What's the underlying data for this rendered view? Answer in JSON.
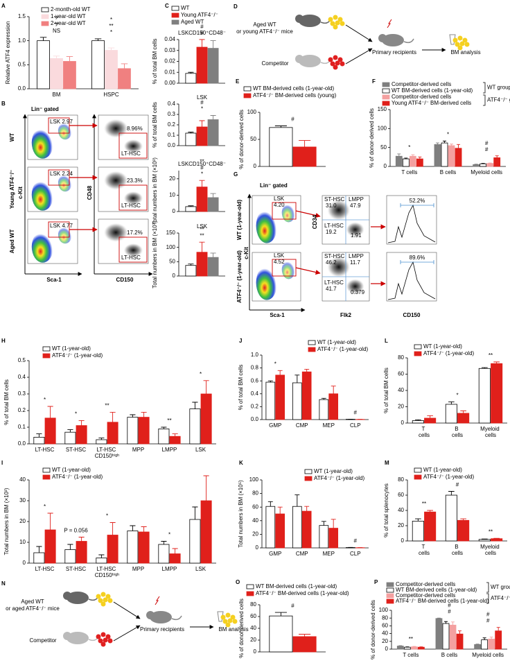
{
  "chart_data": [
    {
      "type": "bar",
      "panel": "A",
      "y_label": "Relative ATF4 expression",
      "categories": [
        "BM",
        "HSPC"
      ],
      "ylim": [
        0,
        1.5
      ],
      "yticks": [
        {
          "value": 0,
          "label": "0.0"
        },
        0.5,
        {
          "value": 1,
          "label": "1.0"
        },
        1.5
      ],
      "series": [
        {
          "name": "2-month-old WT",
          "color": "#ffffff",
          "values": [
            1.0,
            1.0
          ],
          "errors": [
            0.07,
            0.04
          ]
        },
        {
          "name": "1-year-old WT",
          "color": "#fadadd",
          "values": [
            0.63,
            0.8
          ],
          "errors": [
            0.05,
            0.05
          ]
        },
        {
          "name": "2-year-old WT",
          "color": "#f08080",
          "values": [
            0.57,
            0.42
          ],
          "errors": [
            0.1,
            0.1
          ]
        }
      ],
      "annotations": [
        {
          "text": "NS",
          "category": 0
        },
        {
          "text": "**",
          "category": 0
        },
        {
          "text": "**",
          "category": 0
        },
        {
          "text": "*",
          "category": 1
        },
        {
          "text": "**",
          "category": 1
        },
        {
          "text": "*",
          "category": 1
        }
      ]
    },
    {
      "type": "bar",
      "panel": "C",
      "title": "LSKCD150⁺CD48⁻",
      "y_label": "% of total BM cells",
      "categories": [
        null
      ],
      "ylim": [
        0,
        0.04
      ],
      "yticks": [
        {
          "value": 0,
          "label": "0.00"
        },
        0.01,
        0.02,
        0.03,
        0.04
      ],
      "series": [
        {
          "name": "WT",
          "color": "#ffffff",
          "values": [
            0.009
          ],
          "errors": [
            0.001
          ]
        },
        {
          "name": "Young ATF4⁻/⁻",
          "color": "#e0201b",
          "values": [
            0.033
          ],
          "errors": [
            0.007
          ]
        },
        {
          "name": "Aged WT",
          "color": "#7f7f7f",
          "values": [
            0.032
          ],
          "errors": [
            0.007
          ]
        }
      ],
      "annotations": [
        {
          "text": "#",
          "category": 0
        },
        {
          "text": "#",
          "category": 0
        }
      ]
    },
    {
      "type": "bar",
      "title": "LSK",
      "y_label": "% of total BM cells",
      "categories": [
        null
      ],
      "ylim": [
        0,
        0.4
      ],
      "yticks": [
        {
          "value": 0,
          "label": "0.0"
        },
        0.1,
        0.2,
        0.3,
        0.4
      ],
      "series": [
        {
          "color": "#ffffff",
          "values": [
            0.12
          ],
          "errors": [
            0.01
          ]
        },
        {
          "color": "#e0201b",
          "values": [
            0.18
          ],
          "errors": [
            0.06
          ]
        },
        {
          "color": "#7f7f7f",
          "values": [
            0.25
          ],
          "errors": [
            0.04
          ]
        }
      ],
      "annotations": [
        {
          "text": "*",
          "category": 0
        },
        {
          "text": "#",
          "category": 0
        }
      ]
    },
    {
      "type": "bar",
      "title": "LSKCD150⁺CD48⁻",
      "y_label": "Total numbers in BM (×10³)",
      "categories": [
        null
      ],
      "ylim": [
        0,
        25
      ],
      "yticks": [
        0,
        10,
        20
      ],
      "series": [
        {
          "color": "#ffffff",
          "values": [
            3
          ],
          "errors": [
            0.5
          ]
        },
        {
          "color": "#e0201b",
          "values": [
            15
          ],
          "errors": [
            4
          ]
        },
        {
          "color": "#7f7f7f",
          "values": [
            8.5
          ],
          "errors": [
            2.5
          ]
        }
      ],
      "annotations": [
        {
          "text": "*",
          "category": 0
        },
        {
          "text": "#",
          "category": 0
        },
        {
          "text": "**",
          "category": 0
        }
      ]
    },
    {
      "type": "bar",
      "title": "LSK",
      "y_label": "Total numbers in BM (×10⁴)",
      "categories": [
        null
      ],
      "ylim": [
        0,
        150
      ],
      "yticks": [
        0,
        50,
        100,
        150
      ],
      "series": [
        {
          "color": "#ffffff",
          "values": [
            37
          ],
          "errors": [
            5
          ]
        },
        {
          "color": "#e0201b",
          "values": [
            83
          ],
          "errors": [
            35
          ]
        },
        {
          "color": "#7f7f7f",
          "values": [
            65
          ],
          "errors": [
            15
          ]
        }
      ],
      "annotations": [
        {
          "text": "**",
          "category": 0
        },
        {
          "text": "**",
          "category": 0
        }
      ]
    },
    {
      "type": "bar",
      "panel": "E",
      "y_label": "% of donor-derived cells",
      "categories": [
        null
      ],
      "ylim": [
        0,
        100
      ],
      "yticks": [
        0,
        50,
        100
      ],
      "series": [
        {
          "name": "WT BM-derived cells (1-year-old)",
          "color": "#ffffff",
          "values": [
            72
          ],
          "errors": [
            3
          ]
        },
        {
          "name": "ATF4⁻/⁻ BM-derived cells (young)",
          "color": "#e0201b",
          "values": [
            36
          ],
          "errors": [
            12
          ]
        }
      ],
      "annotations": [
        {
          "text": "#",
          "category": 0
        }
      ]
    },
    {
      "type": "bar",
      "panel": "F",
      "y_label": "% of donor-derived cells",
      "categories": [
        "T cells",
        "B cells",
        "Myeloid cells"
      ],
      "ylim": [
        0,
        150
      ],
      "yticks": [
        0,
        50,
        100,
        150
      ],
      "series": [
        {
          "name": "Competitor-derived cells",
          "color": "#7f7f7f",
          "values": [
            27,
            58,
            5
          ],
          "errors": [
            6,
            4,
            1
          ]
        },
        {
          "name": "WT BM-derived cells (1-year-old)",
          "color": "#ffffff",
          "values": [
            20,
            62,
            7
          ],
          "errors": [
            2,
            5,
            1
          ]
        },
        {
          "name": "Competitor-derived cells",
          "color": "#f4a0a0",
          "values": [
            27,
            55,
            8
          ],
          "errors": [
            4,
            4,
            1
          ]
        },
        {
          "name": "Young ATF4⁻/⁻ BM-derived cells",
          "color": "#e0201b",
          "values": [
            20,
            48,
            23
          ],
          "errors": [
            5,
            10,
            5
          ]
        }
      ],
      "group_labels": [
        {
          "text": "WT group",
          "series": [
            0,
            1
          ]
        },
        {
          "text": "ATF4⁻/⁻ group",
          "series": [
            2,
            3
          ]
        }
      ],
      "annotations": [
        {
          "text": "*",
          "category": 0
        },
        {
          "text": "*",
          "category": 1
        },
        {
          "text": "#",
          "category": 2
        },
        {
          "text": "#",
          "category": 2
        }
      ]
    },
    {
      "type": "bar",
      "panel": "H",
      "y_label": "% of total BM cells",
      "categories": [
        "LT-HSC",
        "ST-HSC",
        "LT-HSC CD150ʰⁱᵍʰ",
        "MPP",
        "LMPP",
        "LSK"
      ],
      "ylim": [
        0,
        0.5
      ],
      "yticks": [
        {
          "value": 0,
          "label": "0.0"
        },
        0.1,
        0.2,
        0.3,
        0.4,
        0.5
      ],
      "series": [
        {
          "name": "WT (1-year-old)",
          "color": "#ffffff",
          "values": [
            0.04,
            0.07,
            0.025,
            0.16,
            0.09,
            0.21
          ],
          "errors": [
            0.02,
            0.015,
            0.01,
            0.015,
            0.01,
            0.04
          ]
        },
        {
          "name": "ATF4⁻/⁻ (1-year-old)",
          "color": "#e0201b",
          "values": [
            0.155,
            0.11,
            0.13,
            0.16,
            0.045,
            0.3
          ],
          "errors": [
            0.07,
            0.03,
            0.06,
            0.03,
            0.015,
            0.08
          ]
        }
      ],
      "annotations": [
        {
          "text": "*",
          "category": 0
        },
        {
          "text": "*",
          "category": 1
        },
        {
          "text": "**",
          "category": 2
        },
        {
          "text": "**",
          "category": 4
        },
        {
          "text": "*",
          "category": 5
        }
      ]
    },
    {
      "type": "bar",
      "panel": "I",
      "y_label": "Total numbers in BM (×10³)",
      "categories": [
        "LT-HSC",
        "ST-HSC",
        "LT-HSC CD150ʰⁱᵍʰ",
        "MPP",
        "LMPP",
        "LSK"
      ],
      "ylim": [
        0,
        40
      ],
      "yticks": [
        0,
        10,
        20,
        30,
        40
      ],
      "series": [
        {
          "name": "WT (1-year-old)",
          "color": "#ffffff",
          "values": [
            5,
            6.5,
            2.5,
            15.5,
            9,
            21
          ],
          "errors": [
            3,
            2.5,
            1.5,
            2.5,
            1.5,
            6
          ]
        },
        {
          "name": "ATF4⁻/⁻ (1-year-old)",
          "color": "#e0201b",
          "values": [
            16,
            10.5,
            13.5,
            15,
            4.5,
            30
          ],
          "errors": [
            8,
            2,
            6,
            2.5,
            2.5,
            12
          ]
        }
      ],
      "annotations": [
        {
          "text": "*",
          "category": 0
        },
        {
          "text": "P = 0.056",
          "category": 1
        },
        {
          "text": "*",
          "category": 2
        },
        {
          "text": "*",
          "category": 4
        }
      ]
    },
    {
      "type": "bar",
      "panel": "J",
      "y_label": "% of total BM cells",
      "categories": [
        "GMP",
        "CMP",
        "MEP",
        "CLP"
      ],
      "ylim": [
        0,
        1
      ],
      "yticks": [
        {
          "value": 0,
          "label": "0.0"
        },
        0.2,
        0.4,
        0.6,
        0.8,
        {
          "value": 1,
          "label": "1.0"
        }
      ],
      "series": [
        {
          "name": "WT (1-year-old)",
          "color": "#ffffff",
          "values": [
            0.58,
            0.57,
            0.31,
            0.005
          ],
          "errors": [
            0.02,
            0.12,
            0.02,
            0.001
          ]
        },
        {
          "name": "ATF4⁻/⁻ (1-year-old)",
          "color": "#e0201b",
          "values": [
            0.69,
            0.74,
            0.4,
            0.003
          ],
          "errors": [
            0.07,
            0.04,
            0.12,
            0.001
          ]
        }
      ],
      "annotations": [
        {
          "text": "*",
          "category": 0
        },
        {
          "text": "#",
          "category": 3
        }
      ]
    },
    {
      "type": "bar",
      "panel": "K",
      "y_label": "Total numbers in BM (×10⁵)",
      "categories": [
        "GMP",
        "CMP",
        "MEP",
        "CLP"
      ],
      "ylim": [
        0,
        100
      ],
      "yticks": [
        0,
        20,
        40,
        60,
        80,
        100
      ],
      "series": [
        {
          "name": "WT (1-year-old)",
          "color": "#ffffff",
          "values": [
            61,
            61,
            33,
            0.5
          ],
          "errors": [
            7,
            17,
            6,
            0.2
          ]
        },
        {
          "name": "ATF4⁻/⁻ (1-year-old)",
          "color": "#e0201b",
          "values": [
            50,
            54,
            29,
            0.3
          ],
          "errors": [
            10,
            7,
            13,
            0.1
          ]
        }
      ],
      "annotations": [
        {
          "text": "#",
          "category": 3
        }
      ]
    },
    {
      "type": "bar",
      "panel": "L",
      "y_label": "% of total BM cells",
      "categories": [
        "T cells",
        "B cells",
        "Myeloid cells"
      ],
      "ylim": [
        0,
        80
      ],
      "yticks": [
        0,
        20,
        40,
        60,
        80
      ],
      "series": [
        {
          "name": "WT (1-year-old)",
          "color": "#ffffff",
          "values": [
            3,
            23,
            67
          ],
          "errors": [
            1,
            3,
            1
          ]
        },
        {
          "name": "ATF4⁻/⁻ (1-year-old)",
          "color": "#e0201b",
          "values": [
            6,
            12,
            73
          ],
          "errors": [
            3,
            3,
            2
          ]
        }
      ],
      "annotations": [
        {
          "text": "*",
          "category": 1
        },
        {
          "text": "**",
          "category": 2
        }
      ]
    },
    {
      "type": "bar",
      "panel": "M",
      "y_label": "% of total splenocytes",
      "categories": [
        "T cells",
        "B cells",
        "Myeloid cells"
      ],
      "ylim": [
        0,
        80
      ],
      "yticks": [
        0,
        20,
        40,
        60,
        80
      ],
      "series": [
        {
          "name": "WT (1-year-old)",
          "color": "#ffffff",
          "values": [
            26,
            60,
            2
          ],
          "errors": [
            3,
            5,
            0.5
          ]
        },
        {
          "name": "ATF4⁻/⁻ (1-year-old)",
          "color": "#e0201b",
          "values": [
            38,
            27,
            3
          ],
          "errors": [
            2,
            2,
            0.5
          ]
        }
      ],
      "annotations": [
        {
          "text": "**",
          "category": 0
        },
        {
          "text": "#",
          "category": 1
        },
        {
          "text": "**",
          "category": 2
        }
      ]
    },
    {
      "type": "bar",
      "panel": "O",
      "y_label": "% of donor-derived cells",
      "categories": [
        null
      ],
      "ylim": [
        0,
        80
      ],
      "yticks": [
        0,
        20,
        40,
        60,
        80
      ],
      "series": [
        {
          "name": "WT BM-derived cells (1-year-old)",
          "color": "#ffffff",
          "values": [
            61
          ],
          "errors": [
            6
          ]
        },
        {
          "name": "ATF4⁻/⁻ BM-derived cells (1-year-old)",
          "color": "#e0201b",
          "values": [
            26
          ],
          "errors": [
            4
          ]
        }
      ],
      "annotations": [
        {
          "text": "#",
          "category": 0
        }
      ]
    },
    {
      "type": "bar",
      "panel": "P",
      "y_label": "% of donor-derived cells",
      "categories": [
        "T cells",
        "B cells",
        "Myeloid cells"
      ],
      "ylim": [
        0,
        100
      ],
      "yticks": [
        0,
        20,
        40,
        60,
        80,
        100
      ],
      "series": [
        {
          "name": "Competitor-derived cells",
          "color": "#7f7f7f",
          "values": [
            8,
            79,
            12
          ],
          "errors": [
            1,
            1,
            1
          ]
        },
        {
          "name": "WT BM-derived cells (1-year-old)",
          "color": "#ffffff",
          "values": [
            5,
            66,
            24
          ],
          "errors": [
            1,
            5,
            5
          ]
        },
        {
          "name": "Competitor-derived cells",
          "color": "#f4a0a0",
          "values": [
            6,
            62,
            26
          ],
          "errors": [
            1,
            8,
            5
          ]
        },
        {
          "name": "ATF4⁻/⁻ BM-derived cells (1-year-old)",
          "color": "#e0201b",
          "values": [
            5,
            39,
            47
          ],
          "errors": [
            1,
            8,
            9
          ]
        }
      ],
      "group_labels": [
        {
          "text": "WT group",
          "series": [
            0,
            1
          ]
        },
        {
          "text": "ATF4⁻/⁻ group",
          "series": [
            2,
            3
          ]
        }
      ],
      "annotations": [
        {
          "text": "**",
          "category": 0
        },
        {
          "text": "#",
          "category": 1
        },
        {
          "text": "#",
          "category": 1
        },
        {
          "text": "#",
          "category": 2
        },
        {
          "text": "#",
          "category": 2
        }
      ]
    }
  ],
  "panel_b": {
    "panel": "B",
    "gate": "Lin⁻ gated",
    "rows": [
      "WT",
      "Young ATF4⁻/⁻",
      "Aged WT"
    ],
    "x_left": "Sca-1",
    "y_left": "c-Kit",
    "x_right": "CD150",
    "y_right": "CD48",
    "lsk": [
      "LSK  2.97",
      "LSK  2.24",
      "LSK  4.77"
    ],
    "lt_hsc": [
      "8.96%",
      "23.3%",
      "17.2%"
    ],
    "gate_label": "LT-HSC"
  },
  "panel_g": {
    "panel": "G",
    "gate": "Lin⁻ gated",
    "rows": [
      "WT (1-year-old)",
      "ATF4⁻/⁻ (1-year-old)"
    ],
    "x_left": "Sca-1",
    "y_left": "c-Kit",
    "x_mid": "Flk2",
    "y_mid": "CD34",
    "x_right": "CD150",
    "lsk_label": "LSK",
    "lsk": [
      "4.20",
      "4.52"
    ],
    "st_label": "ST-HSC",
    "lmpp_label": "LMPP",
    "lt_label": "LT-HSC",
    "st_hsc": [
      "31.0",
      "46.2"
    ],
    "lmpp": [
      "47.9",
      "11.7"
    ],
    "lt_hsc": [
      "19.2",
      "41.7"
    ],
    "q4": [
      "1.91",
      "0.379"
    ],
    "cd150": [
      "52.2%",
      "89.6%"
    ]
  },
  "panel_d": {
    "panel": "D",
    "donor": [
      "Aged WT",
      "or young ATF4⁻/⁻ mice"
    ],
    "competitor": "Competitor",
    "recipients": "Primary recipients",
    "analysis": "BM analysis"
  },
  "panel_n": {
    "panel": "N",
    "donor": [
      "Aged WT",
      "or aged ATF4⁻/⁻ mice"
    ],
    "competitor": "Competitor",
    "recipients": "Primary recipients",
    "analysis": "BM analysis"
  }
}
